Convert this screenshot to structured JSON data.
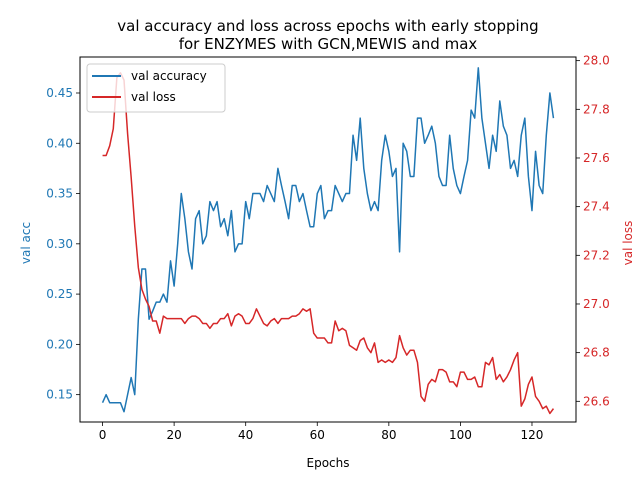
{
  "chart_data": {
    "type": "line",
    "title_line1": "val accuracy and loss across epochs with early stopping",
    "title_line2": "for ENZYMES with GCN,MEWIS and max",
    "xlabel": "Epochs",
    "ylabel_left": "val acc",
    "ylabel_right": "val loss",
    "xlim": [
      -6.3,
      132.3
    ],
    "ylim_left": [
      0.1228,
      0.4858
    ],
    "ylim_right": [
      26.515,
      28.015
    ],
    "xticks": [
      0,
      20,
      40,
      60,
      80,
      100,
      120
    ],
    "yticks_left": [
      0.15,
      0.2,
      0.25,
      0.3,
      0.35,
      0.4,
      0.45
    ],
    "yticks_right": [
      26.6,
      26.8,
      27.0,
      27.2,
      27.4,
      27.6,
      27.8,
      28.0
    ],
    "legend_position": "top-left",
    "colors": {
      "acc": "#1f77b4",
      "loss": "#d62728"
    },
    "series": [
      {
        "name": "val accuracy",
        "axis": "left",
        "values": [
          0.142,
          0.15,
          0.142,
          0.142,
          0.142,
          0.142,
          0.133,
          0.15,
          0.167,
          0.15,
          0.225,
          0.275,
          0.275,
          0.225,
          0.233,
          0.242,
          0.242,
          0.25,
          0.242,
          0.283,
          0.258,
          0.3,
          0.35,
          0.325,
          0.292,
          0.275,
          0.325,
          0.333,
          0.3,
          0.308,
          0.342,
          0.333,
          0.342,
          0.317,
          0.325,
          0.308,
          0.333,
          0.292,
          0.3,
          0.3,
          0.342,
          0.325,
          0.35,
          0.35,
          0.35,
          0.342,
          0.358,
          0.35,
          0.342,
          0.375,
          0.358,
          0.342,
          0.325,
          0.358,
          0.358,
          0.342,
          0.35,
          0.333,
          0.317,
          0.317,
          0.35,
          0.358,
          0.325,
          0.333,
          0.333,
          0.358,
          0.35,
          0.342,
          0.35,
          0.35,
          0.408,
          0.383,
          0.425,
          0.375,
          0.35,
          0.333,
          0.342,
          0.333,
          0.383,
          0.408,
          0.392,
          0.367,
          0.375,
          0.292,
          0.4,
          0.392,
          0.367,
          0.367,
          0.425,
          0.425,
          0.4,
          0.408,
          0.417,
          0.4,
          0.367,
          0.358,
          0.358,
          0.408,
          0.375,
          0.358,
          0.35,
          0.367,
          0.383,
          0.433,
          0.425,
          0.475,
          0.425,
          0.4,
          0.375,
          0.408,
          0.392,
          0.442,
          0.417,
          0.408,
          0.375,
          0.383,
          0.367,
          0.408,
          0.425,
          0.367,
          0.333,
          0.392,
          0.358,
          0.35,
          0.408,
          0.45,
          0.425
        ]
      },
      {
        "name": "val loss",
        "axis": "right",
        "values": [
          27.61,
          27.61,
          27.65,
          27.72,
          27.93,
          27.95,
          27.92,
          27.7,
          27.52,
          27.32,
          27.15,
          27.06,
          27.02,
          26.99,
          26.93,
          26.93,
          26.88,
          26.95,
          26.94,
          26.94,
          26.94,
          26.94,
          26.94,
          26.92,
          26.94,
          26.95,
          26.95,
          26.94,
          26.92,
          26.92,
          26.9,
          26.92,
          26.92,
          26.94,
          26.94,
          26.96,
          26.91,
          26.95,
          26.96,
          26.95,
          26.92,
          26.92,
          26.94,
          26.98,
          26.95,
          26.92,
          26.91,
          26.93,
          26.94,
          26.92,
          26.94,
          26.94,
          26.94,
          26.95,
          26.95,
          26.96,
          26.98,
          26.97,
          26.98,
          26.88,
          26.86,
          26.86,
          26.86,
          26.84,
          26.84,
          26.93,
          26.89,
          26.9,
          26.89,
          26.83,
          26.82,
          26.81,
          26.85,
          26.86,
          26.82,
          26.8,
          26.84,
          26.76,
          26.77,
          26.76,
          26.77,
          26.76,
          26.78,
          26.87,
          26.82,
          26.79,
          26.81,
          26.81,
          26.76,
          26.62,
          26.6,
          26.67,
          26.69,
          26.68,
          26.73,
          26.73,
          26.72,
          26.68,
          26.68,
          26.66,
          26.72,
          26.72,
          26.69,
          26.69,
          26.7,
          26.66,
          26.66,
          26.76,
          26.75,
          26.78,
          26.69,
          26.71,
          26.68,
          26.7,
          26.73,
          26.77,
          26.8,
          26.58,
          26.61,
          26.67,
          26.7,
          26.62,
          26.6,
          26.57,
          26.58,
          26.55,
          26.57
        ]
      }
    ]
  }
}
